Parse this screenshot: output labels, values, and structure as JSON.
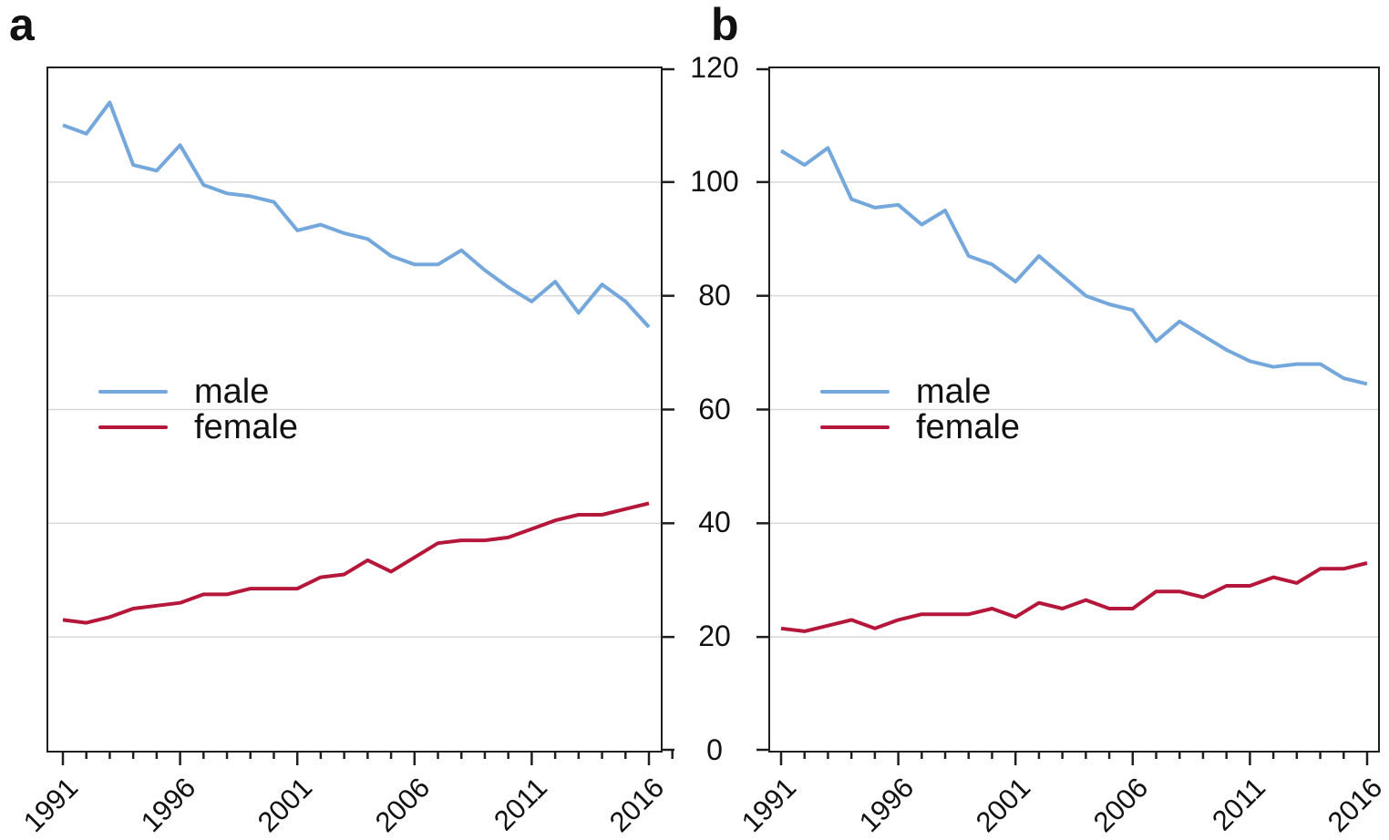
{
  "figure": {
    "panel_a_label": "a",
    "panel_b_label": "b"
  },
  "legend": {
    "male_label": "male",
    "female_label": "female",
    "position": "left-middle"
  },
  "colors": {
    "male_line": "#74a7dc",
    "female_line": "#b5173a",
    "gridline": "#d8d8d8",
    "frame": "#1f1f1f",
    "text": "#111111"
  },
  "y_axis": {
    "min": 0,
    "max": 120,
    "tick_labels": [
      "0",
      "20",
      "40",
      "60",
      "80",
      "100",
      "120"
    ],
    "tick_values": [
      0,
      20,
      40,
      60,
      80,
      100,
      120
    ],
    "gridline_values": [
      20,
      40,
      60,
      80,
      100
    ],
    "shared": true
  },
  "x_axis": {
    "start_year": 1991,
    "end_year": 2016,
    "major_tick_labels": [
      "1991",
      "1996",
      "2001",
      "2006",
      "2011",
      "2016"
    ],
    "major_tick_values": [
      1991,
      1996,
      2001,
      2006,
      2011,
      2016
    ],
    "minor_tick_step": 1,
    "label_rotation_deg": -45
  },
  "chart_data": [
    {
      "panel": "a",
      "type": "line",
      "x": [
        1991,
        1992,
        1993,
        1994,
        1995,
        1996,
        1997,
        1998,
        1999,
        2000,
        2001,
        2002,
        2003,
        2004,
        2005,
        2006,
        2007,
        2008,
        2009,
        2010,
        2011,
        2012,
        2013,
        2014,
        2015,
        2016
      ],
      "series": [
        {
          "name": "male",
          "color": "#74a7dc",
          "values": [
            110,
            108.5,
            114,
            103,
            102,
            106.5,
            99.5,
            98,
            97.5,
            96.5,
            91.5,
            92.5,
            91,
            90,
            87,
            85.5,
            85.5,
            88,
            84.5,
            81.5,
            79,
            82.5,
            77,
            82,
            79,
            74.5
          ]
        },
        {
          "name": "female",
          "color": "#b5173a",
          "values": [
            23,
            22.5,
            23.5,
            25,
            25.5,
            26,
            27.5,
            27.5,
            28.5,
            28.5,
            28.5,
            30.5,
            31,
            33.5,
            31.5,
            34,
            36.5,
            37,
            37,
            37.5,
            39,
            40.5,
            41.5,
            41.5,
            42.5,
            43.5
          ]
        }
      ],
      "ylim": [
        0,
        120
      ],
      "grid": true,
      "extra_minor_tick_year": 2017
    },
    {
      "panel": "b",
      "type": "line",
      "x": [
        1991,
        1992,
        1993,
        1994,
        1995,
        1996,
        1997,
        1998,
        1999,
        2000,
        2001,
        2002,
        2003,
        2004,
        2005,
        2006,
        2007,
        2008,
        2009,
        2010,
        2011,
        2012,
        2013,
        2014,
        2015,
        2016
      ],
      "series": [
        {
          "name": "male",
          "color": "#74a7dc",
          "values": [
            105.5,
            103,
            106,
            97,
            95.5,
            96,
            92.5,
            95,
            87,
            85.5,
            82.5,
            87,
            83.5,
            80,
            78.5,
            77.5,
            72,
            75.5,
            73,
            70.5,
            68.5,
            67.5,
            68,
            68,
            65.5,
            64.5
          ]
        },
        {
          "name": "female",
          "color": "#b5173a",
          "values": [
            21.5,
            21,
            22,
            23,
            21.5,
            23,
            24,
            24,
            24,
            25,
            23.5,
            26,
            25,
            26.5,
            25,
            25,
            28,
            28,
            27,
            29,
            29,
            30.5,
            29.5,
            32,
            32,
            33
          ]
        }
      ],
      "ylim": [
        0,
        120
      ],
      "grid": true,
      "extra_minor_tick_year": null
    }
  ]
}
